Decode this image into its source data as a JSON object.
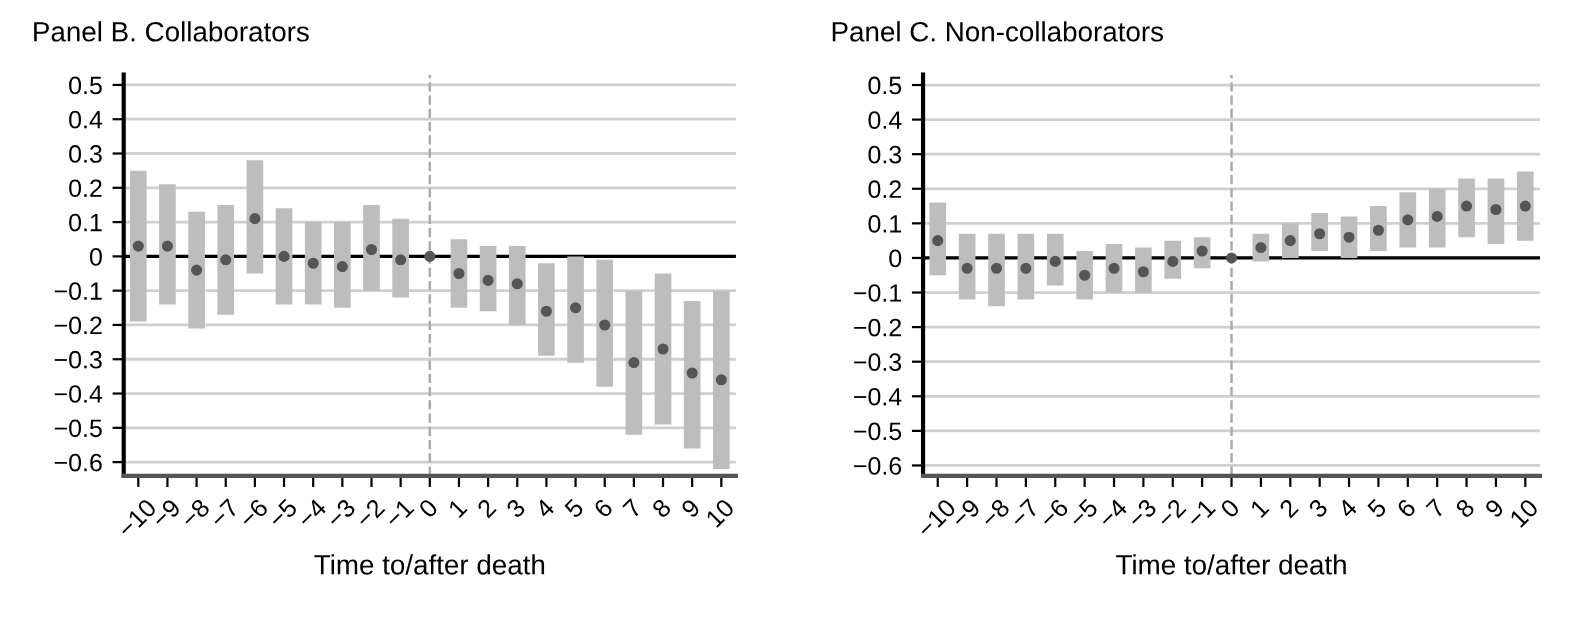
{
  "chart_data": [
    {
      "type": "scatter",
      "title": "Panel B. Collaborators",
      "xlabel": "Time to/after death",
      "categories": [
        "−10",
        "−9",
        "−8",
        "−7",
        "−6",
        "−5",
        "−4",
        "−3",
        "−2",
        "−1",
        "0",
        "1",
        "2",
        "3",
        "4",
        "5",
        "6",
        "7",
        "8",
        "9",
        "10"
      ],
      "series": [
        {
          "color": "#555555",
          "values": [
            0.03,
            0.03,
            -0.04,
            -0.01,
            0.11,
            0.0,
            -0.02,
            -0.03,
            0.02,
            -0.01,
            0,
            -0.05,
            -0.07,
            -0.08,
            -0.16,
            -0.15,
            -0.2,
            -0.31,
            -0.27,
            -0.34,
            -0.36
          ],
          "errors": [
            [
              -0.19,
              0.25
            ],
            [
              -0.14,
              0.21
            ],
            [
              -0.21,
              0.13
            ],
            [
              -0.17,
              0.15
            ],
            [
              -0.05,
              0.28
            ],
            [
              -0.14,
              0.14
            ],
            [
              -0.14,
              0.1
            ],
            [
              -0.15,
              0.1
            ],
            [
              -0.1,
              0.15
            ],
            [
              -0.12,
              0.11
            ],
            null,
            [
              -0.15,
              0.05
            ],
            [
              -0.16,
              0.03
            ],
            [
              -0.2,
              0.03
            ],
            [
              -0.29,
              -0.02
            ],
            [
              -0.31,
              0.0
            ],
            [
              -0.38,
              -0.01
            ],
            [
              -0.52,
              -0.1
            ],
            [
              -0.49,
              -0.05
            ],
            [
              -0.56,
              -0.13
            ],
            [
              -0.62,
              -0.1
            ]
          ]
        }
      ],
      "ylim": [
        -0.64,
        0.53
      ],
      "yticks": [
        {
          "value": -0.6,
          "label": "−0.6"
        },
        {
          "value": -0.5,
          "label": "−0.5"
        },
        {
          "value": -0.4,
          "label": "−0.4"
        },
        {
          "value": -0.3,
          "label": "−0.3"
        },
        {
          "value": -0.2,
          "label": "−0.2"
        },
        {
          "value": -0.1,
          "label": "−0.1"
        },
        0,
        0.1,
        0.2,
        0.3,
        0.4,
        0.5
      ],
      "ref_lines": [
        {
          "axis": "y",
          "value": 0,
          "color": "#000000",
          "line_style": "solid"
        },
        {
          "axis": "x",
          "value": "0",
          "color": "#aaaaaa",
          "line_style": "dashed"
        }
      ],
      "grid": "y",
      "marker": "circle",
      "legend": false
    },
    {
      "type": "scatter",
      "title": "Panel C. Non-collaborators",
      "xlabel": "Time to/after death",
      "categories": [
        "−10",
        "−9",
        "−8",
        "−7",
        "−6",
        "−5",
        "−4",
        "−3",
        "−2",
        "−1",
        "0",
        "1",
        "2",
        "3",
        "4",
        "5",
        "6",
        "7",
        "8",
        "9",
        "10"
      ],
      "series": [
        {
          "color": "#555555",
          "values": [
            0.05,
            -0.03,
            -0.03,
            -0.03,
            -0.01,
            -0.05,
            -0.03,
            -0.04,
            -0.01,
            0.02,
            0,
            0.03,
            0.05,
            0.07,
            0.06,
            0.08,
            0.11,
            0.12,
            0.15,
            0.14,
            0.15
          ],
          "errors": [
            [
              -0.05,
              0.16
            ],
            [
              -0.12,
              0.07
            ],
            [
              -0.14,
              0.07
            ],
            [
              -0.12,
              0.07
            ],
            [
              -0.08,
              0.07
            ],
            [
              -0.12,
              0.02
            ],
            [
              -0.1,
              0.04
            ],
            [
              -0.1,
              0.03
            ],
            [
              -0.06,
              0.05
            ],
            [
              -0.03,
              0.06
            ],
            null,
            [
              -0.01,
              0.07
            ],
            [
              0.0,
              0.1
            ],
            [
              0.02,
              0.13
            ],
            [
              0.0,
              0.12
            ],
            [
              0.02,
              0.15
            ],
            [
              0.03,
              0.19
            ],
            [
              0.03,
              0.2
            ],
            [
              0.06,
              0.23
            ],
            [
              0.04,
              0.23
            ],
            [
              0.05,
              0.25
            ]
          ]
        }
      ],
      "ylim": [
        -0.63,
        0.53
      ],
      "yticks": [
        {
          "value": -0.6,
          "label": "−0.6"
        },
        {
          "value": -0.5,
          "label": "−0.5"
        },
        {
          "value": -0.4,
          "label": "−0.4"
        },
        {
          "value": -0.3,
          "label": "−0.3"
        },
        {
          "value": -0.2,
          "label": "−0.2"
        },
        {
          "value": -0.1,
          "label": "−0.1"
        },
        0,
        0.1,
        0.2,
        0.3,
        0.4,
        0.5
      ],
      "ref_lines": [
        {
          "axis": "y",
          "value": 0,
          "color": "#000000",
          "line_style": "solid"
        },
        {
          "axis": "x",
          "value": "0",
          "color": "#aaaaaa",
          "line_style": "dashed"
        }
      ],
      "grid": "y",
      "marker": "circle",
      "legend": false
    }
  ]
}
